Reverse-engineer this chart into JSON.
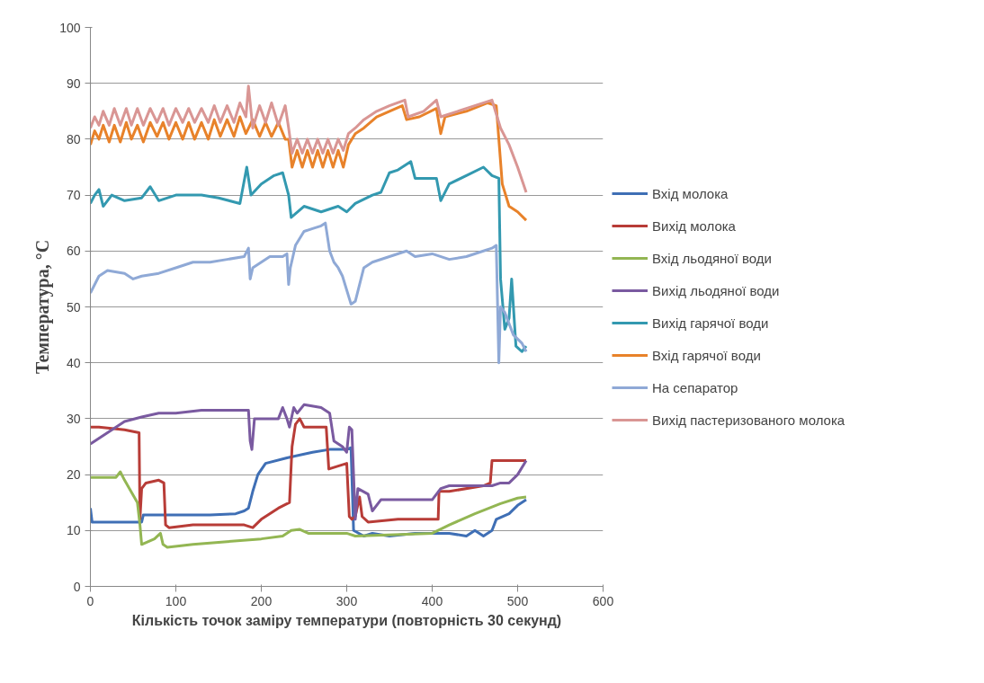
{
  "chart_data": {
    "type": "line",
    "xlabel": "Кількість точок заміру температури (повторність 30 секунд)",
    "ylabel": "Температура, °C",
    "xlim": [
      0,
      600
    ],
    "xticks": [
      0,
      100,
      200,
      300,
      400,
      500,
      600
    ],
    "ylim": [
      0,
      100
    ],
    "yticks": [
      0,
      10,
      20,
      30,
      40,
      50,
      60,
      70,
      80,
      90,
      100
    ],
    "grid": "y",
    "legend": "right",
    "marker": "none",
    "line_style": "solid",
    "series": [
      {
        "name": "Вхід молока",
        "color": "#3f6fb5",
        "x": [
          0,
          2,
          20,
          60,
          62,
          100,
          140,
          170,
          180,
          185,
          190,
          196,
          205,
          230,
          260,
          280,
          300,
          305,
          308,
          320,
          330,
          350,
          380,
          400,
          420,
          440,
          450,
          460,
          470,
          475,
          490,
          500,
          510
        ],
        "values": [
          14,
          11.5,
          11.5,
          11.5,
          12.8,
          12.8,
          12.8,
          13,
          13.5,
          14,
          17,
          20,
          22,
          23,
          24,
          24.5,
          24.5,
          24.8,
          10,
          9,
          9.5,
          9,
          9.5,
          9.5,
          9.5,
          9,
          10,
          9,
          10,
          12,
          13,
          14.5,
          15.5
        ]
      },
      {
        "name": "Вихід молока",
        "color": "#b83c37",
        "x": [
          0,
          10,
          40,
          57,
          58,
          60,
          65,
          80,
          86,
          88,
          92,
          120,
          180,
          190,
          200,
          220,
          233,
          236,
          240,
          245,
          250,
          276,
          279,
          300,
          303,
          306,
          310,
          315,
          318,
          325,
          360,
          407,
          408,
          420,
          460,
          468,
          470,
          510
        ],
        "values": [
          28.5,
          28.5,
          28,
          27.5,
          12,
          17.5,
          18.5,
          19,
          18.5,
          11,
          10.5,
          11,
          11,
          10.5,
          12,
          14,
          15,
          25,
          29,
          30,
          28.5,
          28.5,
          21,
          22,
          12.5,
          12,
          12.5,
          16,
          12.5,
          11.5,
          12,
          12,
          17,
          17,
          18,
          18.5,
          22.5,
          22.5
        ]
      },
      {
        "name": "Вхід льодяної води",
        "color": "#93b653",
        "x": [
          0,
          30,
          35,
          40,
          55,
          58,
          60,
          75,
          82,
          85,
          90,
          120,
          160,
          200,
          225,
          235,
          245,
          255,
          290,
          300,
          310,
          400,
          420,
          450,
          480,
          500,
          510
        ],
        "values": [
          19.5,
          19.5,
          20.5,
          19,
          15,
          11,
          7.5,
          8.5,
          9.5,
          7.5,
          7,
          7.5,
          8,
          8.5,
          9,
          10,
          10.2,
          9.5,
          9.5,
          9.5,
          9,
          9.5,
          11,
          13,
          14.8,
          15.8,
          16
        ]
      },
      {
        "name": "Вихід льодяної води",
        "color": "#7a5aa0",
        "x": [
          0,
          20,
          40,
          60,
          80,
          100,
          130,
          185,
          187,
          189,
          192,
          220,
          225,
          230,
          233,
          238,
          242,
          250,
          270,
          280,
          285,
          295,
          300,
          303,
          306,
          310,
          313,
          325,
          330,
          340,
          390,
          400,
          410,
          420,
          470,
          480,
          490,
          500,
          510
        ],
        "values": [
          25.5,
          27.5,
          29.5,
          30.3,
          31,
          31,
          31.5,
          31.5,
          26,
          24.5,
          30,
          30,
          32,
          30,
          28.5,
          32,
          31,
          32.5,
          32,
          31,
          26,
          25,
          24,
          28.5,
          28,
          12,
          17.5,
          16.5,
          13.5,
          15.5,
          15.5,
          15.5,
          17.5,
          18,
          18,
          18.5,
          18.5,
          20,
          22.5
        ]
      },
      {
        "name": "Вихід гарячої води",
        "color": "#3399b0",
        "x": [
          0,
          5,
          10,
          15,
          25,
          40,
          60,
          70,
          80,
          100,
          130,
          150,
          175,
          183,
          188,
          200,
          215,
          225,
          232,
          235,
          250,
          270,
          290,
          300,
          310,
          330,
          340,
          350,
          360,
          375,
          380,
          400,
          405,
          410,
          420,
          440,
          460,
          470,
          478,
          480,
          485,
          490,
          493,
          498,
          505,
          510
        ],
        "values": [
          68.5,
          70,
          71,
          68,
          70,
          69,
          69.5,
          71.5,
          69,
          70,
          70,
          69.5,
          68.5,
          75,
          70,
          72,
          73.5,
          74,
          70,
          66,
          68,
          67,
          68,
          67,
          68.5,
          70,
          70.5,
          74,
          74.5,
          76,
          73,
          73,
          73,
          69,
          72,
          73.5,
          75,
          73.5,
          73,
          55,
          46,
          48,
          55,
          43,
          42,
          43
        ]
      },
      {
        "name": "Вхід гарячої води",
        "color": "#e8822a",
        "x": [
          0,
          5,
          10,
          15,
          22,
          28,
          35,
          42,
          48,
          55,
          62,
          70,
          78,
          85,
          92,
          100,
          108,
          115,
          122,
          130,
          138,
          145,
          152,
          160,
          168,
          175,
          182,
          190,
          198,
          205,
          212,
          220,
          228,
          232,
          236,
          242,
          248,
          254,
          260,
          266,
          272,
          278,
          284,
          290,
          296,
          302,
          310,
          320,
          335,
          350,
          365,
          370,
          385,
          405,
          410,
          415,
          440,
          465,
          475,
          478,
          482,
          490,
          500,
          510
        ],
        "values": [
          79,
          81.5,
          80,
          82.5,
          79.5,
          82.5,
          79.5,
          83,
          80,
          82.5,
          79.5,
          83,
          80.5,
          83,
          80,
          83,
          80,
          83,
          80,
          83,
          80,
          83.5,
          80.5,
          83.5,
          80.5,
          84,
          81,
          83.5,
          80.5,
          83,
          80.5,
          83,
          80,
          80,
          75,
          78,
          75,
          78,
          75,
          78,
          75,
          78,
          75,
          78,
          75,
          79,
          81,
          82,
          84,
          85,
          86,
          83.5,
          84,
          85.5,
          81,
          84,
          85,
          86.5,
          86,
          80,
          72,
          68,
          67,
          65.5
        ]
      },
      {
        "name": "На сепаратор",
        "color": "#8fa9d6",
        "x": [
          0,
          10,
          20,
          40,
          50,
          60,
          80,
          100,
          120,
          140,
          160,
          180,
          185,
          187,
          190,
          210,
          225,
          230,
          232,
          234,
          240,
          250,
          260,
          270,
          275,
          280,
          285,
          290,
          295,
          305,
          310,
          320,
          330,
          350,
          370,
          380,
          400,
          420,
          440,
          460,
          470,
          475,
          478,
          480,
          485,
          495,
          505,
          510
        ],
        "values": [
          52.5,
          55.5,
          56.5,
          56,
          55,
          55.5,
          56,
          57,
          58,
          58,
          58.5,
          59,
          60.5,
          55,
          57,
          59,
          59,
          59.5,
          54,
          57,
          61,
          63.5,
          64,
          64.5,
          65,
          60,
          58,
          57,
          55.5,
          50.5,
          51,
          57,
          58,
          59,
          60,
          59,
          59.5,
          58.5,
          59,
          60,
          60.5,
          61,
          40,
          50,
          49,
          45,
          43.5,
          42
        ]
      },
      {
        "name": "Вихід пастеризованого молока",
        "color": "#d99694",
        "x": [
          0,
          5,
          10,
          15,
          22,
          28,
          35,
          42,
          48,
          55,
          62,
          70,
          78,
          85,
          92,
          100,
          108,
          115,
          122,
          130,
          138,
          145,
          152,
          160,
          168,
          175,
          182,
          185,
          190,
          198,
          205,
          212,
          220,
          228,
          232,
          236,
          242,
          248,
          254,
          260,
          266,
          272,
          278,
          284,
          290,
          296,
          302,
          310,
          320,
          335,
          350,
          368,
          372,
          390,
          405,
          410,
          440,
          470,
          480,
          490,
          500,
          510
        ],
        "values": [
          82,
          84,
          82.5,
          85,
          82.5,
          85.5,
          82.5,
          85.5,
          82.5,
          85.5,
          82.5,
          85.5,
          83,
          85.5,
          82.5,
          85.5,
          83,
          85.5,
          83,
          85.5,
          83,
          86,
          83,
          86,
          83,
          86.5,
          84,
          89.5,
          82,
          86,
          83,
          86.5,
          82.5,
          86,
          82,
          77.5,
          80,
          77.5,
          80,
          77.5,
          80,
          77.5,
          80,
          77.5,
          80,
          78,
          81,
          82,
          83.5,
          85,
          86,
          87,
          84,
          85,
          87,
          84,
          85.5,
          87,
          82,
          79,
          75,
          70.5
        ]
      }
    ]
  }
}
